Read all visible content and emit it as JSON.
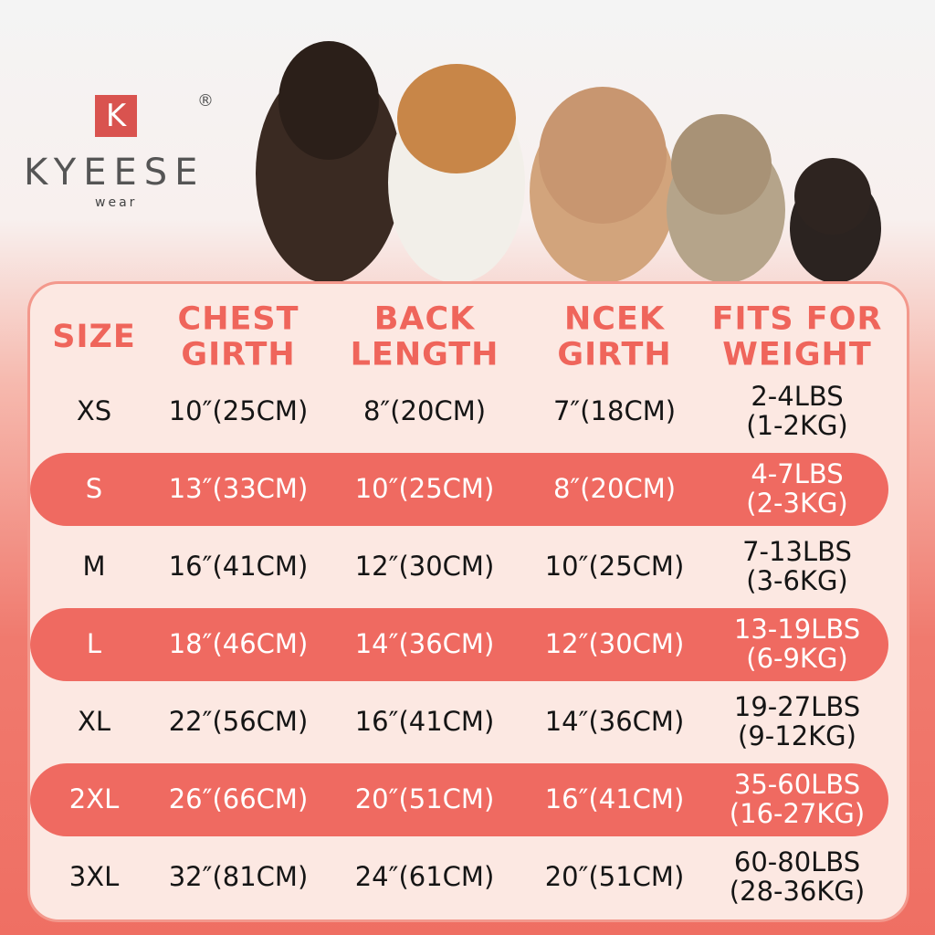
{
  "brand": {
    "letter": "K",
    "registered": "®",
    "name": "KYEESE",
    "sub": "wear"
  },
  "table": {
    "header": [
      [
        "SIZE"
      ],
      [
        "CHEST",
        "GIRTH"
      ],
      [
        "BACK",
        "LENGTH"
      ],
      [
        "NCEK",
        "GIRTH"
      ],
      [
        "FITS FOR",
        "WEIGHT"
      ]
    ],
    "rows": [
      [
        "XS",
        "10″(25CM)",
        "8″(20CM)",
        "7″(18CM)",
        [
          "2-4LBS",
          "(1-2KG)"
        ]
      ],
      [
        "S",
        "13″(33CM)",
        "10″(25CM)",
        "8″(20CM)",
        [
          "4-7LBS",
          "(2-3KG)"
        ]
      ],
      [
        "M",
        "16″(41CM)",
        "12″(30CM)",
        "10″(25CM)",
        [
          "7-13LBS",
          "(3-6KG)"
        ]
      ],
      [
        "L",
        "18″(46CM)",
        "14″(36CM)",
        "12″(30CM)",
        [
          "13-19LBS",
          "(6-9KG)"
        ]
      ],
      [
        "XL",
        "22″(56CM)",
        "16″(41CM)",
        "14″(36CM)",
        [
          "19-27LBS",
          "(9-12KG)"
        ]
      ],
      [
        "2XL",
        "26″(66CM)",
        "20″(51CM)",
        "16″(41CM)",
        [
          "35-60LBS",
          "(16-27KG)"
        ]
      ],
      [
        "3XL",
        "32″(81CM)",
        "24″(61CM)",
        "20″(51CM)",
        [
          "60-80LBS",
          "(28-36KG)"
        ]
      ]
    ]
  }
}
